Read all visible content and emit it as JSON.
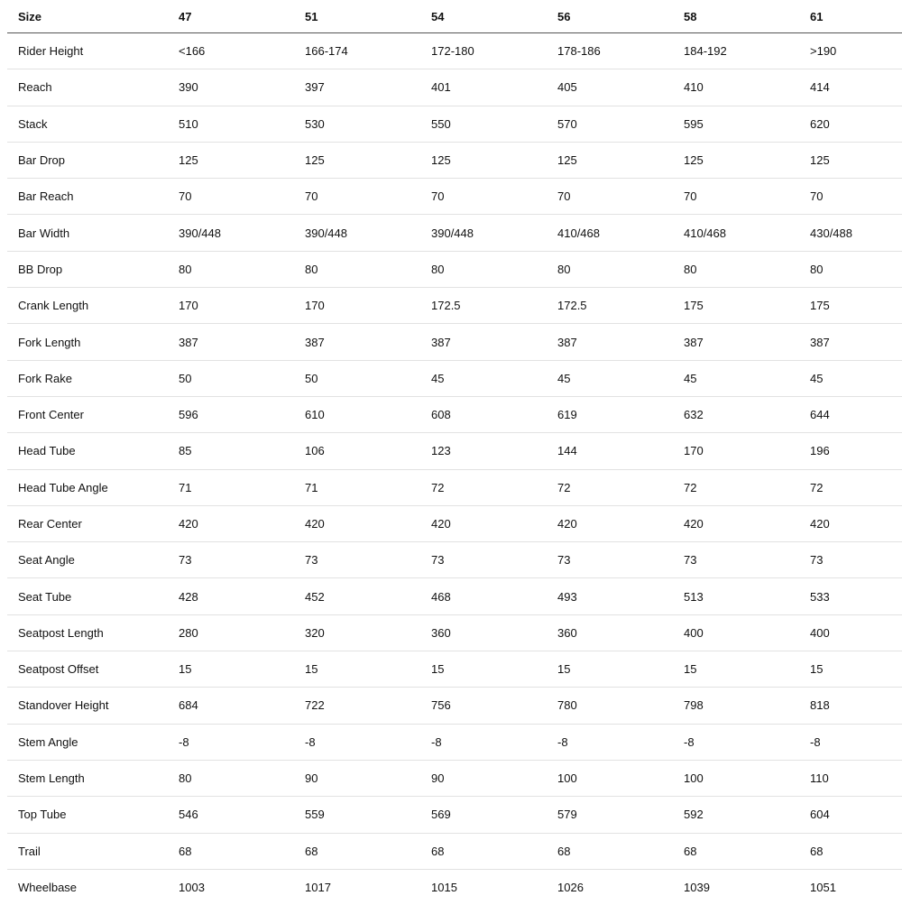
{
  "table": {
    "header": [
      "Size",
      "47",
      "51",
      "54",
      "56",
      "58",
      "61"
    ],
    "rows": [
      [
        "Rider Height",
        "<166",
        "166-174",
        "172-180",
        "178-186",
        "184-192",
        ">190"
      ],
      [
        "Reach",
        "390",
        "397",
        "401",
        "405",
        "410",
        "414"
      ],
      [
        "Stack",
        "510",
        "530",
        "550",
        "570",
        "595",
        "620"
      ],
      [
        "Bar Drop",
        "125",
        "125",
        "125",
        "125",
        "125",
        "125"
      ],
      [
        "Bar Reach",
        "70",
        "70",
        "70",
        "70",
        "70",
        "70"
      ],
      [
        "Bar Width",
        "390/448",
        "390/448",
        "390/448",
        "410/468",
        "410/468",
        "430/488"
      ],
      [
        "BB Drop",
        "80",
        "80",
        "80",
        "80",
        "80",
        "80"
      ],
      [
        "Crank Length",
        "170",
        "170",
        "172.5",
        "172.5",
        "175",
        "175"
      ],
      [
        "Fork Length",
        "387",
        "387",
        "387",
        "387",
        "387",
        "387"
      ],
      [
        "Fork Rake",
        "50",
        "50",
        "45",
        "45",
        "45",
        "45"
      ],
      [
        "Front Center",
        "596",
        "610",
        "608",
        "619",
        "632",
        "644"
      ],
      [
        "Head Tube",
        "85",
        "106",
        "123",
        "144",
        "170",
        "196"
      ],
      [
        "Head Tube Angle",
        "71",
        "71",
        "72",
        "72",
        "72",
        "72"
      ],
      [
        "Rear Center",
        "420",
        "420",
        "420",
        "420",
        "420",
        "420"
      ],
      [
        "Seat Angle",
        "73",
        "73",
        "73",
        "73",
        "73",
        "73"
      ],
      [
        "Seat Tube",
        "428",
        "452",
        "468",
        "493",
        "513",
        "533"
      ],
      [
        "Seatpost Length",
        "280",
        "320",
        "360",
        "360",
        "400",
        "400"
      ],
      [
        "Seatpost Offset",
        "15",
        "15",
        "15",
        "15",
        "15",
        "15"
      ],
      [
        "Standover Height",
        "684",
        "722",
        "756",
        "780",
        "798",
        "818"
      ],
      [
        "Stem Angle",
        "-8",
        "-8",
        "-8",
        "-8",
        "-8",
        "-8"
      ],
      [
        "Stem Length",
        "80",
        "90",
        "90",
        "100",
        "100",
        "110"
      ],
      [
        "Top Tube",
        "546",
        "559",
        "569",
        "579",
        "592",
        "604"
      ],
      [
        "Trail",
        "68",
        "68",
        "68",
        "68",
        "68",
        "68"
      ],
      [
        "Wheelbase",
        "1003",
        "1017",
        "1015",
        "1026",
        "1039",
        "1051"
      ]
    ]
  }
}
